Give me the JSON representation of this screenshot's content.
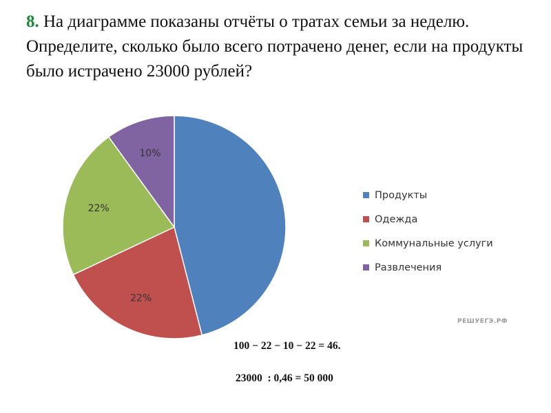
{
  "question": {
    "number": "8.",
    "text": " На диаграмме показаны отчёты о тратах семьи за неделю. Определите, сколько было всего потрачено денег, если на продукты было истрачено 23000 рублей?"
  },
  "chart_data": {
    "type": "pie",
    "categories": [
      "Продукты",
      "Одежда",
      "Коммунальные услуги",
      "Развлечения"
    ],
    "values": [
      46,
      22,
      22,
      10
    ],
    "data_labels": [
      "",
      "22%",
      "22%",
      "10%"
    ],
    "colors": [
      "#4f81bd",
      "#c0504d",
      "#9bbb59",
      "#8064a2"
    ],
    "legend_position": "right"
  },
  "watermark": "РЕШУЕГЭ.РФ",
  "solution": {
    "line1": "100 − 22 − 10 − 22 = 46.",
    "line2": "23000  : 0,46 = 50 000"
  }
}
